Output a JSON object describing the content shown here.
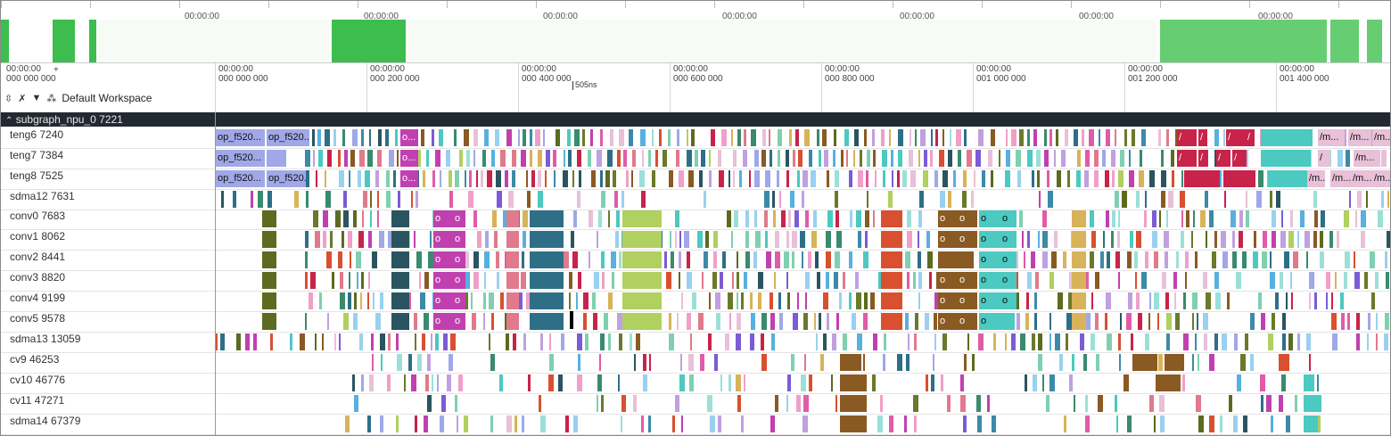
{
  "overview": {
    "time_labels": [
      "00:00:00",
      "00:00:00",
      "00:00:00",
      "00:00:00",
      "00:00:00",
      "00:00:00",
      "00:00:00"
    ],
    "plus_label": "+",
    "origin_label": "00:00:00\n000 000 000"
  },
  "axis": {
    "labels": [
      "00:00:00\n000 000 000",
      "00:00:00\n000 200 000",
      "00:00:00\n000 400 000",
      "00:00:00\n000 600 000",
      "00:00:00\n000 800 000",
      "00:00:00\n001 000 000",
      "00:00:00\n001 200 000",
      "00:00:00\n001 400 000"
    ],
    "marker_label": "505ns"
  },
  "toolbar": {
    "workspace_label": "Default Workspace",
    "icons": [
      "collapse-icon",
      "pin-off-icon",
      "filter-icon",
      "workspace-icon"
    ]
  },
  "section": {
    "title": "subgraph_npu_0 7221",
    "toggle_glyph": "⌃"
  },
  "rows": [
    {
      "label": "teng6 7240"
    },
    {
      "label": "teng7 7384"
    },
    {
      "label": "teng8 7525"
    },
    {
      "label": "sdma12 7631"
    },
    {
      "label": "conv0 7683"
    },
    {
      "label": "conv1 8062"
    },
    {
      "label": "conv2 8441"
    },
    {
      "label": "conv3 8820"
    },
    {
      "label": "conv4 9199"
    },
    {
      "label": "conv5 9578"
    },
    {
      "label": "sdma13 13059"
    },
    {
      "label": "cv9 46253"
    },
    {
      "label": "cv10 46776"
    },
    {
      "label": "cv11 47271"
    },
    {
      "label": "sdma14 67379"
    }
  ],
  "slice_labels": {
    "teng6": [
      "op_f520...",
      "op_f520...",
      "o...",
      "/",
      "/",
      "/",
      "/",
      "/m...",
      "/m...",
      "/m..."
    ],
    "teng7": [
      "op_f520...",
      "o...",
      "/",
      "/",
      "/",
      "/",
      "/",
      "/m..."
    ],
    "teng8": [
      "op_f520...",
      "op_f520...",
      "o...",
      "/m...",
      "/m...",
      "/m...",
      "/m..."
    ],
    "conv0": [
      "o",
      "o",
      "o",
      "o",
      "o",
      "o",
      "o",
      "o"
    ],
    "conv1": [
      "o",
      "o",
      "o",
      "o",
      "o",
      "o",
      "o"
    ],
    "conv2": [
      "o",
      "o",
      "o",
      "o",
      "o"
    ],
    "conv3": [
      "o",
      "o",
      "o",
      "o",
      "o",
      "o",
      "o"
    ],
    "conv4": [
      "o",
      "o",
      "o",
      "o",
      "o",
      "o",
      "o"
    ],
    "conv5": [
      "o",
      "o",
      "o",
      "o",
      "o"
    ]
  },
  "colors": {
    "overview_green": "#3dbd4e",
    "overview_light_green": "#66cd72",
    "section_bg": "#212931",
    "accent_periwinkle": "#a0a8e8",
    "magenta": "#c140b0",
    "teal": "#4cc9c0",
    "crimson": "#c8234a",
    "olive": "#5c6b1f",
    "brown": "#8a5a23"
  }
}
